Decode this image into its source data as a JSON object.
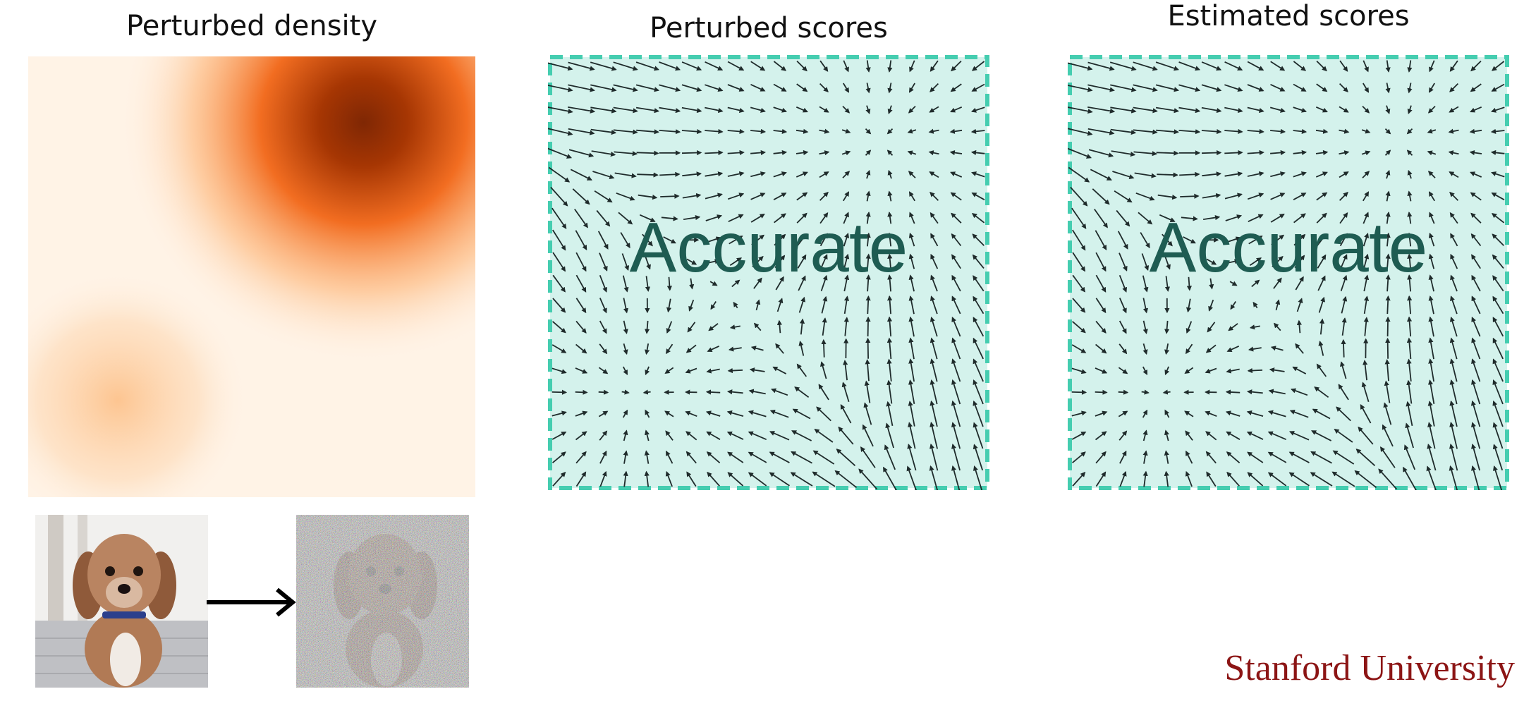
{
  "titles": {
    "density": "Perturbed density",
    "perturbed_scores": "Perturbed scores",
    "estimated_scores": "Estimated scores"
  },
  "panels": {
    "perturbed_label": "Accurate",
    "estimated_label": "Accurate"
  },
  "images": {
    "clean": "dog-photo",
    "noisy": "noisy-dog-photo"
  },
  "icons": {
    "arrow": "right-arrow-icon"
  },
  "colors": {
    "density_dark": "#7f2704",
    "density_mid": "#f26d21",
    "density_light": "#fdd0a2",
    "density_bg": "#fff5eb",
    "panel_fill": "#d4f2ec",
    "panel_border": "#45cdb0",
    "label": "#1e5c52",
    "brand": "#8c1515"
  },
  "brand": "Stanford University"
}
